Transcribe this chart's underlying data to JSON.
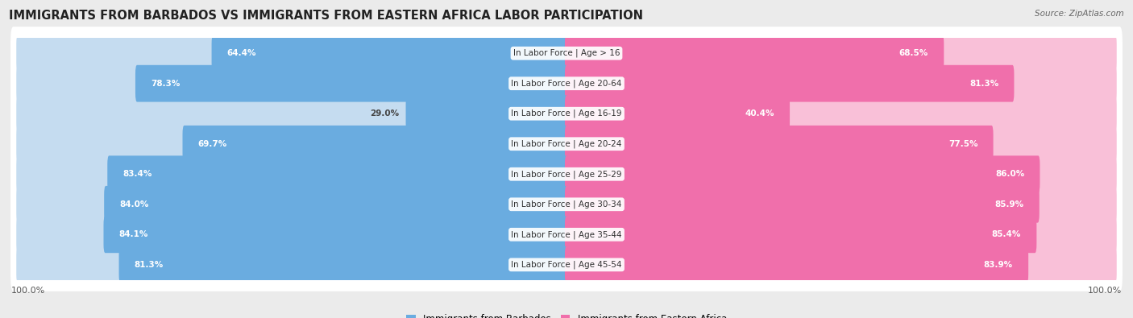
{
  "title": "IMMIGRANTS FROM BARBADOS VS IMMIGRANTS FROM EASTERN AFRICA LABOR PARTICIPATION",
  "source": "Source: ZipAtlas.com",
  "categories": [
    "In Labor Force | Age > 16",
    "In Labor Force | Age 20-64",
    "In Labor Force | Age 16-19",
    "In Labor Force | Age 20-24",
    "In Labor Force | Age 25-29",
    "In Labor Force | Age 30-34",
    "In Labor Force | Age 35-44",
    "In Labor Force | Age 45-54"
  ],
  "barbados_values": [
    64.4,
    78.3,
    29.0,
    69.7,
    83.4,
    84.0,
    84.1,
    81.3
  ],
  "eastern_africa_values": [
    68.5,
    81.3,
    40.4,
    77.5,
    86.0,
    85.9,
    85.4,
    83.9
  ],
  "barbados_color": "#6aace0",
  "eastern_africa_color": "#f06fab",
  "barbados_light_color": "#c5dcf0",
  "eastern_africa_light_color": "#f9c0d8",
  "row_bg_color": "#ffffff",
  "outer_bg_color": "#ebebeb",
  "title_fontsize": 10.5,
  "label_fontsize": 7.5,
  "value_fontsize": 7.5,
  "legend_label_barbados": "Immigrants from Barbados",
  "legend_label_eastern": "Immigrants from Eastern Africa",
  "max_value": 100.0,
  "bar_height": 0.62,
  "axis_label": "100.0%"
}
